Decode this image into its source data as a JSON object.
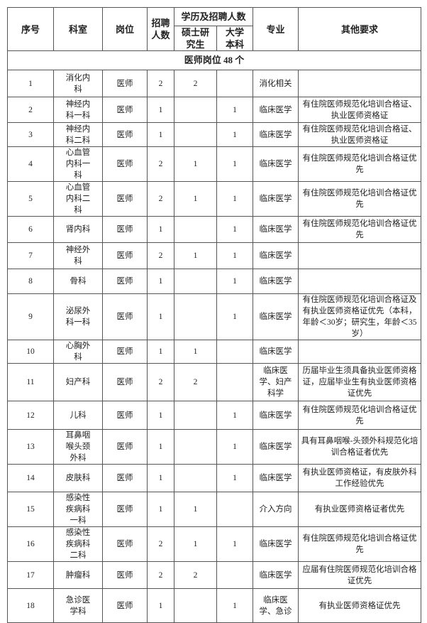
{
  "header": {
    "seq": "序号",
    "dept": "科室",
    "post": "岗位",
    "count": "招聘人数",
    "edu_group": "学历及招聘人数",
    "master": "硕士研究生",
    "bachelor": "大学本科",
    "major": "专业",
    "other": "其他要求"
  },
  "section_title": "医师岗位 48 个",
  "rows": [
    {
      "seq": "1",
      "dept": "消化内科",
      "post": "医师",
      "count": "2",
      "master": "2",
      "bachelor": "",
      "major": "消化相关",
      "other": ""
    },
    {
      "seq": "2",
      "dept": "神经内科一科",
      "post": "医师",
      "count": "1",
      "master": "",
      "bachelor": "1",
      "major": "临床医学",
      "other": "有住院医师规范化培训合格证、执业医师资格证"
    },
    {
      "seq": "3",
      "dept": "神经内科二科",
      "post": "医师",
      "count": "1",
      "master": "",
      "bachelor": "1",
      "major": "临床医学",
      "other": "有住院医师规范化培训合格证、执业医师资格证"
    },
    {
      "seq": "4",
      "dept": "心血管内科一科",
      "post": "医师",
      "count": "2",
      "master": "1",
      "bachelor": "1",
      "major": "临床医学",
      "other": "有住院医师规范化培训合格证优先"
    },
    {
      "seq": "5",
      "dept": "心血管内科二科",
      "post": "医师",
      "count": "2",
      "master": "1",
      "bachelor": "1",
      "major": "临床医学",
      "other": "有住院医师规范化培训合格证优先"
    },
    {
      "seq": "6",
      "dept": "肾内科",
      "post": "医师",
      "count": "1",
      "master": "",
      "bachelor": "1",
      "major": "临床医学",
      "other": "有住院医师规范化培训合格证优先"
    },
    {
      "seq": "7",
      "dept": "神经外科",
      "post": "医师",
      "count": "2",
      "master": "1",
      "bachelor": "1",
      "major": "临床医学",
      "other": ""
    },
    {
      "seq": "8",
      "dept": "骨科",
      "post": "医师",
      "count": "1",
      "master": "",
      "bachelor": "1",
      "major": "临床医学",
      "other": ""
    },
    {
      "seq": "9",
      "dept": "泌尿外科一科",
      "post": "医师",
      "count": "1",
      "master": "",
      "bachelor": "1",
      "major": "临床医学",
      "other": "有住院医师规范化培训合格证及有执业医师资格证优先（本科，年龄＜30岁；研究生，年龄＜35岁）"
    },
    {
      "seq": "10",
      "dept": "心胸外科",
      "post": "医师",
      "count": "1",
      "master": "1",
      "bachelor": "",
      "major": "临床医学",
      "other": ""
    },
    {
      "seq": "11",
      "dept": "妇产科",
      "post": "医师",
      "count": "2",
      "master": "2",
      "bachelor": "",
      "major": "临床医学、妇产科学",
      "other": "历届毕业生须具备执业医师资格证，应届毕业生有执业医师资格证优先"
    },
    {
      "seq": "12",
      "dept": "儿科",
      "post": "医师",
      "count": "1",
      "master": "",
      "bachelor": "1",
      "major": "临床医学",
      "other": "有住院医师规范化培训合格证优先"
    },
    {
      "seq": "13",
      "dept": "耳鼻咽喉头颈外科",
      "post": "医师",
      "count": "1",
      "master": "",
      "bachelor": "1",
      "major": "临床医学",
      "other": "具有耳鼻咽喉-头颈外科规范化培训合格证者优先"
    },
    {
      "seq": "14",
      "dept": "皮肤科",
      "post": "医师",
      "count": "1",
      "master": "",
      "bachelor": "1",
      "major": "临床医学",
      "other": "有执业医师资格证，有皮肤外科工作经验优先"
    },
    {
      "seq": "15",
      "dept": "感染性疾病科一科",
      "post": "医师",
      "count": "1",
      "master": "1",
      "bachelor": "",
      "major": "介入方向",
      "other": "有执业医师资格证者优先"
    },
    {
      "seq": "16",
      "dept": "感染性疾病科二科",
      "post": "医师",
      "count": "2",
      "master": "1",
      "bachelor": "1",
      "major": "临床医学",
      "other": "有住院医师规范化培训合格证优先"
    },
    {
      "seq": "17",
      "dept": "肿瘤科",
      "post": "医师",
      "count": "2",
      "master": "2",
      "bachelor": "",
      "major": "临床医学",
      "other": "应届有住院医师规范化培训合格证优先"
    },
    {
      "seq": "18",
      "dept": "急诊医学科",
      "post": "医师",
      "count": "1",
      "master": "",
      "bachelor": "1",
      "major": "临床医学、急诊",
      "other": "有执业医师资格证优先"
    }
  ]
}
